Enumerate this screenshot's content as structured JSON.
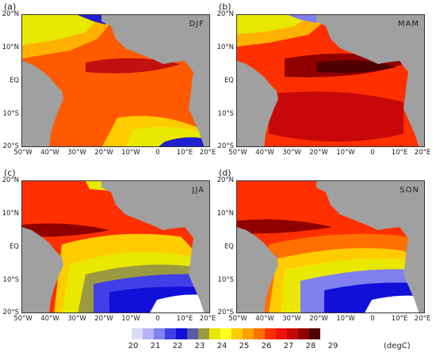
{
  "panels": [
    {
      "letter": "(a)",
      "season": "DJF",
      "pattern": "djf"
    },
    {
      "letter": "(b)",
      "season": "MAM",
      "pattern": "mam"
    },
    {
      "letter": "(c)",
      "season": "JJA",
      "pattern": "jja"
    },
    {
      "letter": "(d)",
      "season": "SON",
      "pattern": "son"
    }
  ],
  "y_ticks": [
    "20°N",
    "10°N",
    "EQ",
    "10°S",
    "20°S"
  ],
  "x_ticks": [
    "50°W",
    "40°W",
    "30°W",
    "20°W",
    "10°W",
    "0",
    "10°E",
    "20°E"
  ],
  "colorbar": {
    "labels": [
      "20",
      "21",
      "22",
      "23",
      "24",
      "25",
      "26",
      "27",
      "28",
      "29"
    ],
    "unit": "(degC)",
    "colors": [
      "#dcdcf8",
      "#b4b4f4",
      "#8080f0",
      "#4040e8",
      "#1010d8",
      "#5a5aa8",
      "#9a9a40",
      "#e8e800",
      "#ffff20",
      "#ffcc00",
      "#ffa000",
      "#ff7000",
      "#ff3000",
      "#f01010",
      "#c80808",
      "#900000",
      "#500000"
    ]
  },
  "land_color": "#a0a0a0"
}
